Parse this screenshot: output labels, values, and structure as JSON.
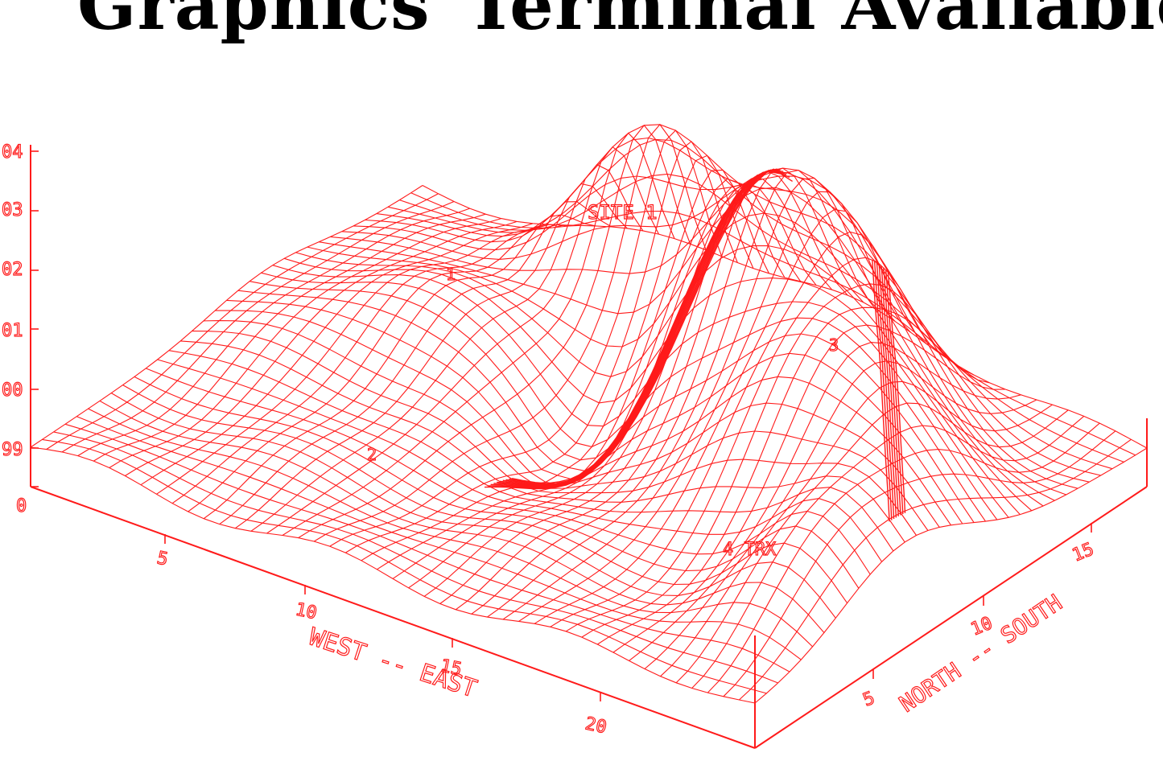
{
  "headline": {
    "left": "Graphics",
    "right": "Terminal Available"
  },
  "colors": {
    "plot": "#ff1a1a",
    "headline": "#000000",
    "background": "#ffffff"
  },
  "axes": {
    "west_east": {
      "label": "WEST -- EAST",
      "ticks": [
        "5",
        "10",
        "15",
        "20"
      ]
    },
    "north_south": {
      "label": "NORTH -- SOUTH",
      "ticks": [
        "5",
        "10",
        "15"
      ]
    },
    "vertical": {
      "ticks": [
        "0",
        "99",
        "00",
        "01",
        "02",
        "03",
        "04"
      ]
    }
  },
  "annotations": {
    "site": "SITE 1",
    "markers": [
      "1",
      "2",
      "3",
      "4 TRX"
    ]
  }
}
